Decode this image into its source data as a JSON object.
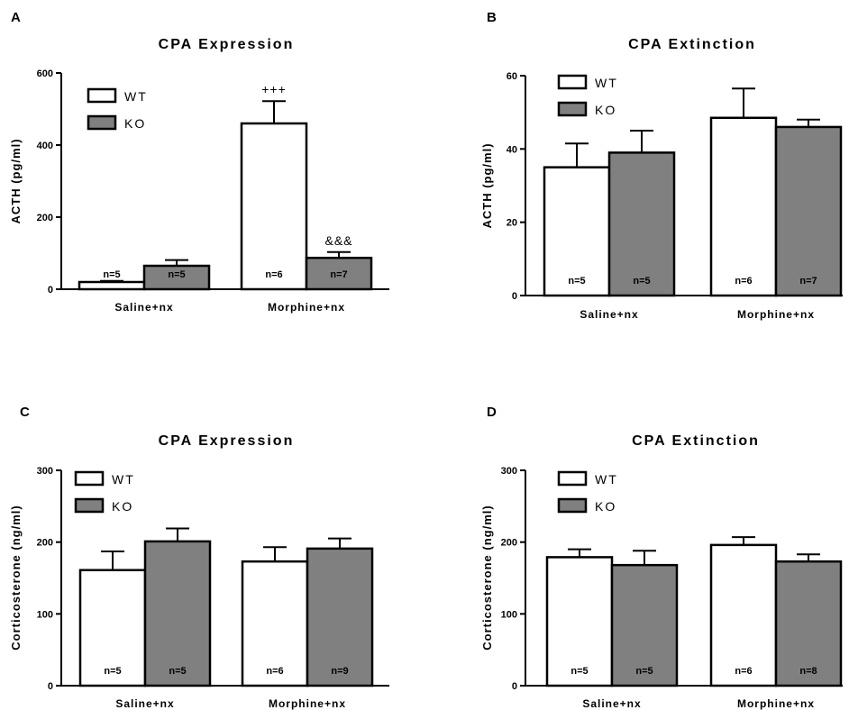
{
  "colors": {
    "wt_fill": "#ffffff",
    "ko_fill": "#808080",
    "stroke": "#000000"
  },
  "chart_data": [
    {
      "panel": "A",
      "type": "bar",
      "title": "CPA Expression",
      "ylabel": "ACTH (pg/ml)",
      "ylim": [
        0,
        600
      ],
      "yticks": [
        "0",
        "200",
        "400",
        "600"
      ],
      "categories": [
        "Saline+nx",
        "Morphine+nx"
      ],
      "legend": {
        "position": "top-left",
        "labels": [
          "WT",
          "KO"
        ]
      },
      "series": [
        {
          "name": "WT",
          "values": [
            20,
            460
          ],
          "errors": [
            3,
            62
          ],
          "n": [
            "n=5",
            "n=6"
          ],
          "annotations": [
            "",
            "+++"
          ]
        },
        {
          "name": "KO",
          "values": [
            65,
            87
          ],
          "errors": [
            16,
            16
          ],
          "n": [
            "n=5",
            "n=7"
          ],
          "annotations": [
            "",
            "&&&"
          ]
        }
      ]
    },
    {
      "panel": "B",
      "type": "bar",
      "title": "CPA Extinction",
      "ylabel": "ACTH (pg/ml)",
      "ylim": [
        0,
        60
      ],
      "yticks": [
        "0",
        "20",
        "40",
        "60"
      ],
      "categories": [
        "Saline+nx",
        "Morphine+nx"
      ],
      "legend": {
        "position": "top-left",
        "labels": [
          "WT",
          "KO"
        ]
      },
      "series": [
        {
          "name": "WT",
          "values": [
            35,
            48.5
          ],
          "errors": [
            6.5,
            8
          ],
          "n": [
            "n=5",
            "n=6"
          ],
          "annotations": [
            "",
            ""
          ]
        },
        {
          "name": "KO",
          "values": [
            39,
            46
          ],
          "errors": [
            6,
            2
          ],
          "n": [
            "n=5",
            "n=7"
          ],
          "annotations": [
            "",
            ""
          ]
        }
      ]
    },
    {
      "panel": "C",
      "type": "bar",
      "title": "CPA Expression",
      "ylabel": "Corticosterone (ng/ml)",
      "ylim": [
        0,
        300
      ],
      "yticks": [
        "0",
        "100",
        "200",
        "300"
      ],
      "categories": [
        "Saline+nx",
        "Morphine+nx"
      ],
      "legend": {
        "position": "top-left",
        "labels": [
          "WT",
          "KO"
        ]
      },
      "series": [
        {
          "name": "WT",
          "values": [
            161,
            173
          ],
          "errors": [
            26,
            20
          ],
          "n": [
            "n=5",
            "n=6"
          ],
          "annotations": [
            "",
            ""
          ]
        },
        {
          "name": "KO",
          "values": [
            201,
            191
          ],
          "errors": [
            18,
            14
          ],
          "n": [
            "n=5",
            "n=9"
          ],
          "annotations": [
            "",
            ""
          ]
        }
      ]
    },
    {
      "panel": "D",
      "type": "bar",
      "title": "CPA Extinction",
      "ylabel": "Corticosterone (ng/ml)",
      "ylim": [
        0,
        300
      ],
      "yticks": [
        "0",
        "100",
        "200",
        "300"
      ],
      "categories": [
        "Saline+nx",
        "Morphine+nx"
      ],
      "legend": {
        "position": "top-left",
        "labels": [
          "WT",
          "KO"
        ]
      },
      "series": [
        {
          "name": "WT",
          "values": [
            179,
            196
          ],
          "errors": [
            11,
            11
          ],
          "n": [
            "n=5",
            "n=6"
          ],
          "annotations": [
            "",
            ""
          ]
        },
        {
          "name": "KO",
          "values": [
            168,
            173
          ],
          "errors": [
            20,
            10
          ],
          "n": [
            "n=5",
            "n=8"
          ],
          "annotations": [
            "",
            ""
          ]
        }
      ]
    }
  ]
}
